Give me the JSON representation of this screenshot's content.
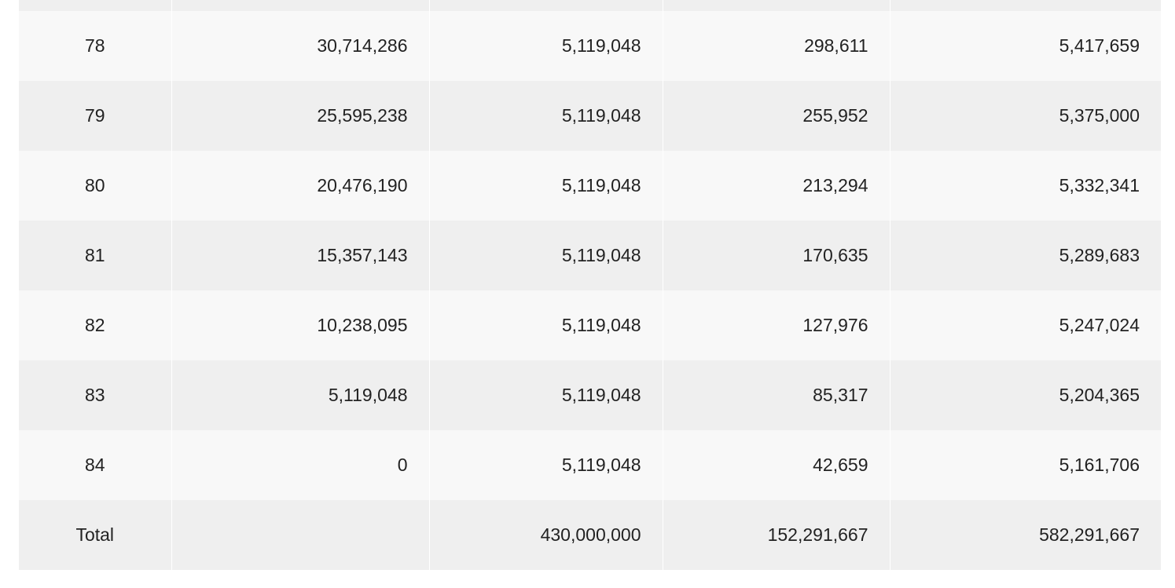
{
  "table": {
    "rows": [
      {
        "period": "78",
        "balance": "30,714,286",
        "principal": "5,119,048",
        "interest": "298,611",
        "total": "5,417,659"
      },
      {
        "period": "79",
        "balance": "25,595,238",
        "principal": "5,119,048",
        "interest": "255,952",
        "total": "5,375,000"
      },
      {
        "period": "80",
        "balance": "20,476,190",
        "principal": "5,119,048",
        "interest": "213,294",
        "total": "5,332,341"
      },
      {
        "period": "81",
        "balance": "15,357,143",
        "principal": "5,119,048",
        "interest": "170,635",
        "total": "5,289,683"
      },
      {
        "period": "82",
        "balance": "10,238,095",
        "principal": "5,119,048",
        "interest": "127,976",
        "total": "5,247,024"
      },
      {
        "period": "83",
        "balance": "5,119,048",
        "principal": "5,119,048",
        "interest": "85,317",
        "total": "5,204,365"
      },
      {
        "period": "84",
        "balance": "0",
        "principal": "5,119,048",
        "interest": "42,659",
        "total": "5,161,706"
      },
      {
        "period": "Total",
        "balance": "",
        "principal": "430,000,000",
        "interest": "152,291,667",
        "total": "582,291,667"
      }
    ]
  }
}
